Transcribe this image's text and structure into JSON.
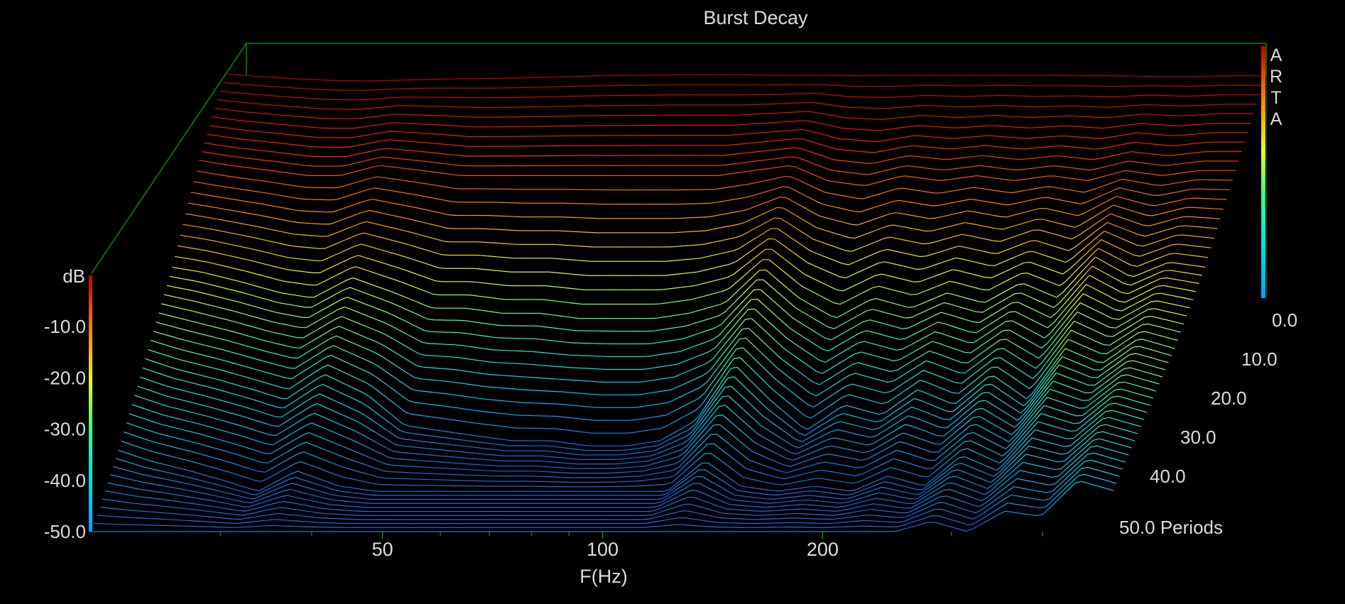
{
  "chart_data": {
    "type": "waterfall",
    "title": "Burst Decay",
    "xlabel": "F(Hz)",
    "zlabel": "dB",
    "xscale": "log",
    "xlim": [
      20,
      500
    ],
    "x_ticks": [
      50,
      100,
      200
    ],
    "x_minor_ticks": [
      30,
      40,
      60,
      70,
      80,
      90,
      300,
      400
    ],
    "zlim": [
      -50,
      0
    ],
    "z_ticks": [
      "-10.0",
      "-20.0",
      "-30.0",
      "-40.0",
      "-50.0"
    ],
    "y_axis_label": "Periods",
    "y_ticks": [
      "0.0",
      "10.0",
      "20.0",
      "30.0",
      "40.0",
      "50.0 Periods"
    ],
    "ylim": [
      0,
      50
    ],
    "slice_count": 51,
    "brand_letters": [
      "A",
      "R",
      "T",
      "A"
    ],
    "colormap": [
      "#1060e0",
      "#00c8ff",
      "#30ffb0",
      "#e8ff30",
      "#ff9000",
      "#ff2000",
      "#b00000"
    ],
    "floor_color": "#2a6adf",
    "frame_color": "#00a000",
    "series": [
      {
        "name": "0.0",
        "x": [
          20,
          22,
          25,
          28,
          31,
          35,
          40,
          45,
          50,
          56,
          63,
          71,
          80,
          90,
          100,
          112,
          126,
          141,
          158,
          178,
          200,
          224,
          251,
          282,
          316,
          355,
          398,
          447,
          500
        ],
        "values": [
          0,
          -0.5,
          -1,
          -1.3,
          -1.4,
          -1.2,
          -1,
          -0.9,
          -0.8,
          -0.6,
          -0.4,
          -0.3,
          -0.2,
          -0.2,
          -0.2,
          -0.3,
          -0.3,
          -0.4,
          -0.3,
          -0.3,
          -0.3,
          -0.3,
          -0.3,
          -0.4,
          -0.4,
          -0.5,
          -0.5,
          -0.4,
          -0.4
        ]
      },
      {
        "name": "10.0",
        "x": [
          20,
          22,
          25,
          28,
          31,
          35,
          40,
          45,
          50,
          56,
          63,
          71,
          80,
          90,
          100,
          112,
          126,
          141,
          158,
          178,
          200,
          224,
          251,
          282,
          316,
          355,
          398,
          447,
          500
        ],
        "values": [
          -9,
          -10,
          -11,
          -12,
          -12,
          -10,
          -11,
          -12,
          -12,
          -12,
          -12,
          -12,
          -12,
          -12,
          -12,
          -11,
          -10,
          -13,
          -14,
          -12,
          -13,
          -12,
          -13,
          -12,
          -13,
          -11,
          -12,
          -11,
          -11
        ]
      },
      {
        "name": "20.0",
        "x": [
          20,
          22,
          25,
          28,
          31,
          35,
          40,
          45,
          50,
          56,
          63,
          71,
          80,
          90,
          100,
          112,
          126,
          141,
          158,
          178,
          200,
          224,
          251,
          282,
          316,
          355,
          398,
          447,
          500
        ],
        "values": [
          -22,
          -23,
          -25,
          -27,
          -28,
          -24,
          -27,
          -30,
          -30,
          -31,
          -31,
          -32,
          -32,
          -32,
          -31,
          -29,
          -22,
          -28,
          -32,
          -28,
          -30,
          -27,
          -29,
          -25,
          -28,
          -20,
          -24,
          -21,
          -22
        ]
      },
      {
        "name": "30.0",
        "x": [
          20,
          22,
          25,
          28,
          31,
          35,
          40,
          45,
          50,
          56,
          63,
          71,
          80,
          90,
          100,
          112,
          126,
          141,
          158,
          178,
          200,
          224,
          251,
          282,
          316,
          355,
          398,
          447,
          500
        ],
        "values": [
          -32,
          -34,
          -36,
          -38,
          -40,
          -35,
          -39,
          -45,
          -46,
          -47,
          -48,
          -48,
          -49,
          -49,
          -48,
          -44,
          -33,
          -40,
          -46,
          -41,
          -43,
          -38,
          -41,
          -35,
          -40,
          -30,
          -33,
          -28,
          -30
        ]
      },
      {
        "name": "40.0",
        "x": [
          20,
          22,
          25,
          28,
          31,
          35,
          40,
          45,
          50,
          56,
          63,
          71,
          80,
          90,
          100,
          112,
          126,
          141,
          158,
          178,
          200,
          224,
          251,
          282,
          316,
          355,
          398,
          447,
          500
        ],
        "values": [
          -42,
          -44,
          -46,
          -48,
          -50,
          -46,
          -49,
          -50,
          -50,
          -50,
          -50,
          -50,
          -50,
          -50,
          -50,
          -50,
          -44,
          -49,
          -50,
          -49,
          -50,
          -47,
          -49,
          -43,
          -46,
          -38,
          -40,
          -34,
          -36
        ]
      },
      {
        "name": "50.0",
        "x": [
          20,
          22,
          25,
          28,
          31,
          35,
          40,
          45,
          50,
          56,
          63,
          71,
          80,
          90,
          100,
          112,
          126,
          141,
          158,
          178,
          200,
          224,
          251,
          282,
          316,
          355,
          398,
          447,
          500
        ],
        "values": [
          -50,
          -50,
          -50,
          -50,
          -50,
          -50,
          -50,
          -50,
          -50,
          -50,
          -50,
          -50,
          -50,
          -50,
          -50,
          -50,
          -50,
          -50,
          -50,
          -50,
          -50,
          -50,
          -50,
          -48,
          -50,
          -46,
          -47,
          -40,
          -42
        ]
      }
    ]
  }
}
